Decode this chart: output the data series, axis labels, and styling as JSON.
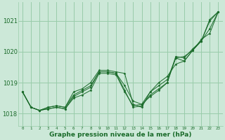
{
  "xlabel": "Graphe pression niveau de la mer (hPa)",
  "background_color": "#cce8d8",
  "grid_color": "#99ccaa",
  "line_color": "#1a6b2a",
  "text_color": "#1a6b2a",
  "ylim": [
    1017.6,
    1021.6
  ],
  "yticks": [
    1018,
    1019,
    1020,
    1021
  ],
  "xlim": [
    -0.5,
    23.5
  ],
  "xticks": [
    0,
    1,
    2,
    3,
    4,
    5,
    6,
    7,
    8,
    9,
    10,
    11,
    12,
    13,
    14,
    15,
    16,
    17,
    18,
    19,
    20,
    21,
    22,
    23
  ],
  "series": [
    [
      1018.7,
      1018.2,
      1018.1,
      1018.15,
      1018.2,
      1018.15,
      1018.5,
      1018.6,
      1018.75,
      1019.3,
      1019.3,
      1019.25,
      1018.7,
      1018.25,
      1018.3,
      1018.55,
      1018.75,
      1019.0,
      1019.8,
      1019.85,
      1020.05,
      1020.35,
      1021.0,
      1021.3
    ],
    [
      1018.7,
      1018.2,
      1018.1,
      1018.15,
      1018.2,
      1018.15,
      1018.55,
      1018.7,
      1018.85,
      1019.35,
      1019.35,
      1019.3,
      1018.75,
      1018.2,
      1018.25,
      1018.6,
      1018.8,
      1019.0,
      1019.85,
      1019.8,
      1020.1,
      1020.35,
      1021.05,
      1021.3
    ],
    [
      1018.7,
      1018.2,
      1018.1,
      1018.2,
      1018.25,
      1018.2,
      1018.6,
      1018.75,
      1018.9,
      1019.35,
      1019.35,
      1019.3,
      1018.9,
      1018.4,
      1018.3,
      1018.7,
      1018.9,
      1019.1,
      1019.8,
      1019.7,
      1020.05,
      1020.35,
      1020.75,
      1021.3
    ],
    [
      1018.7,
      1018.2,
      1018.1,
      1018.2,
      1018.25,
      1018.2,
      1018.7,
      1018.8,
      1019.0,
      1019.4,
      1019.4,
      1019.35,
      1019.3,
      1018.3,
      1018.2,
      1018.7,
      1019.0,
      1019.2,
      1019.6,
      1019.7,
      1020.05,
      1020.4,
      1020.6,
      1021.3
    ]
  ],
  "xlabel_fontsize": 6.5,
  "ytick_fontsize": 6,
  "xtick_fontsize": 4.2
}
